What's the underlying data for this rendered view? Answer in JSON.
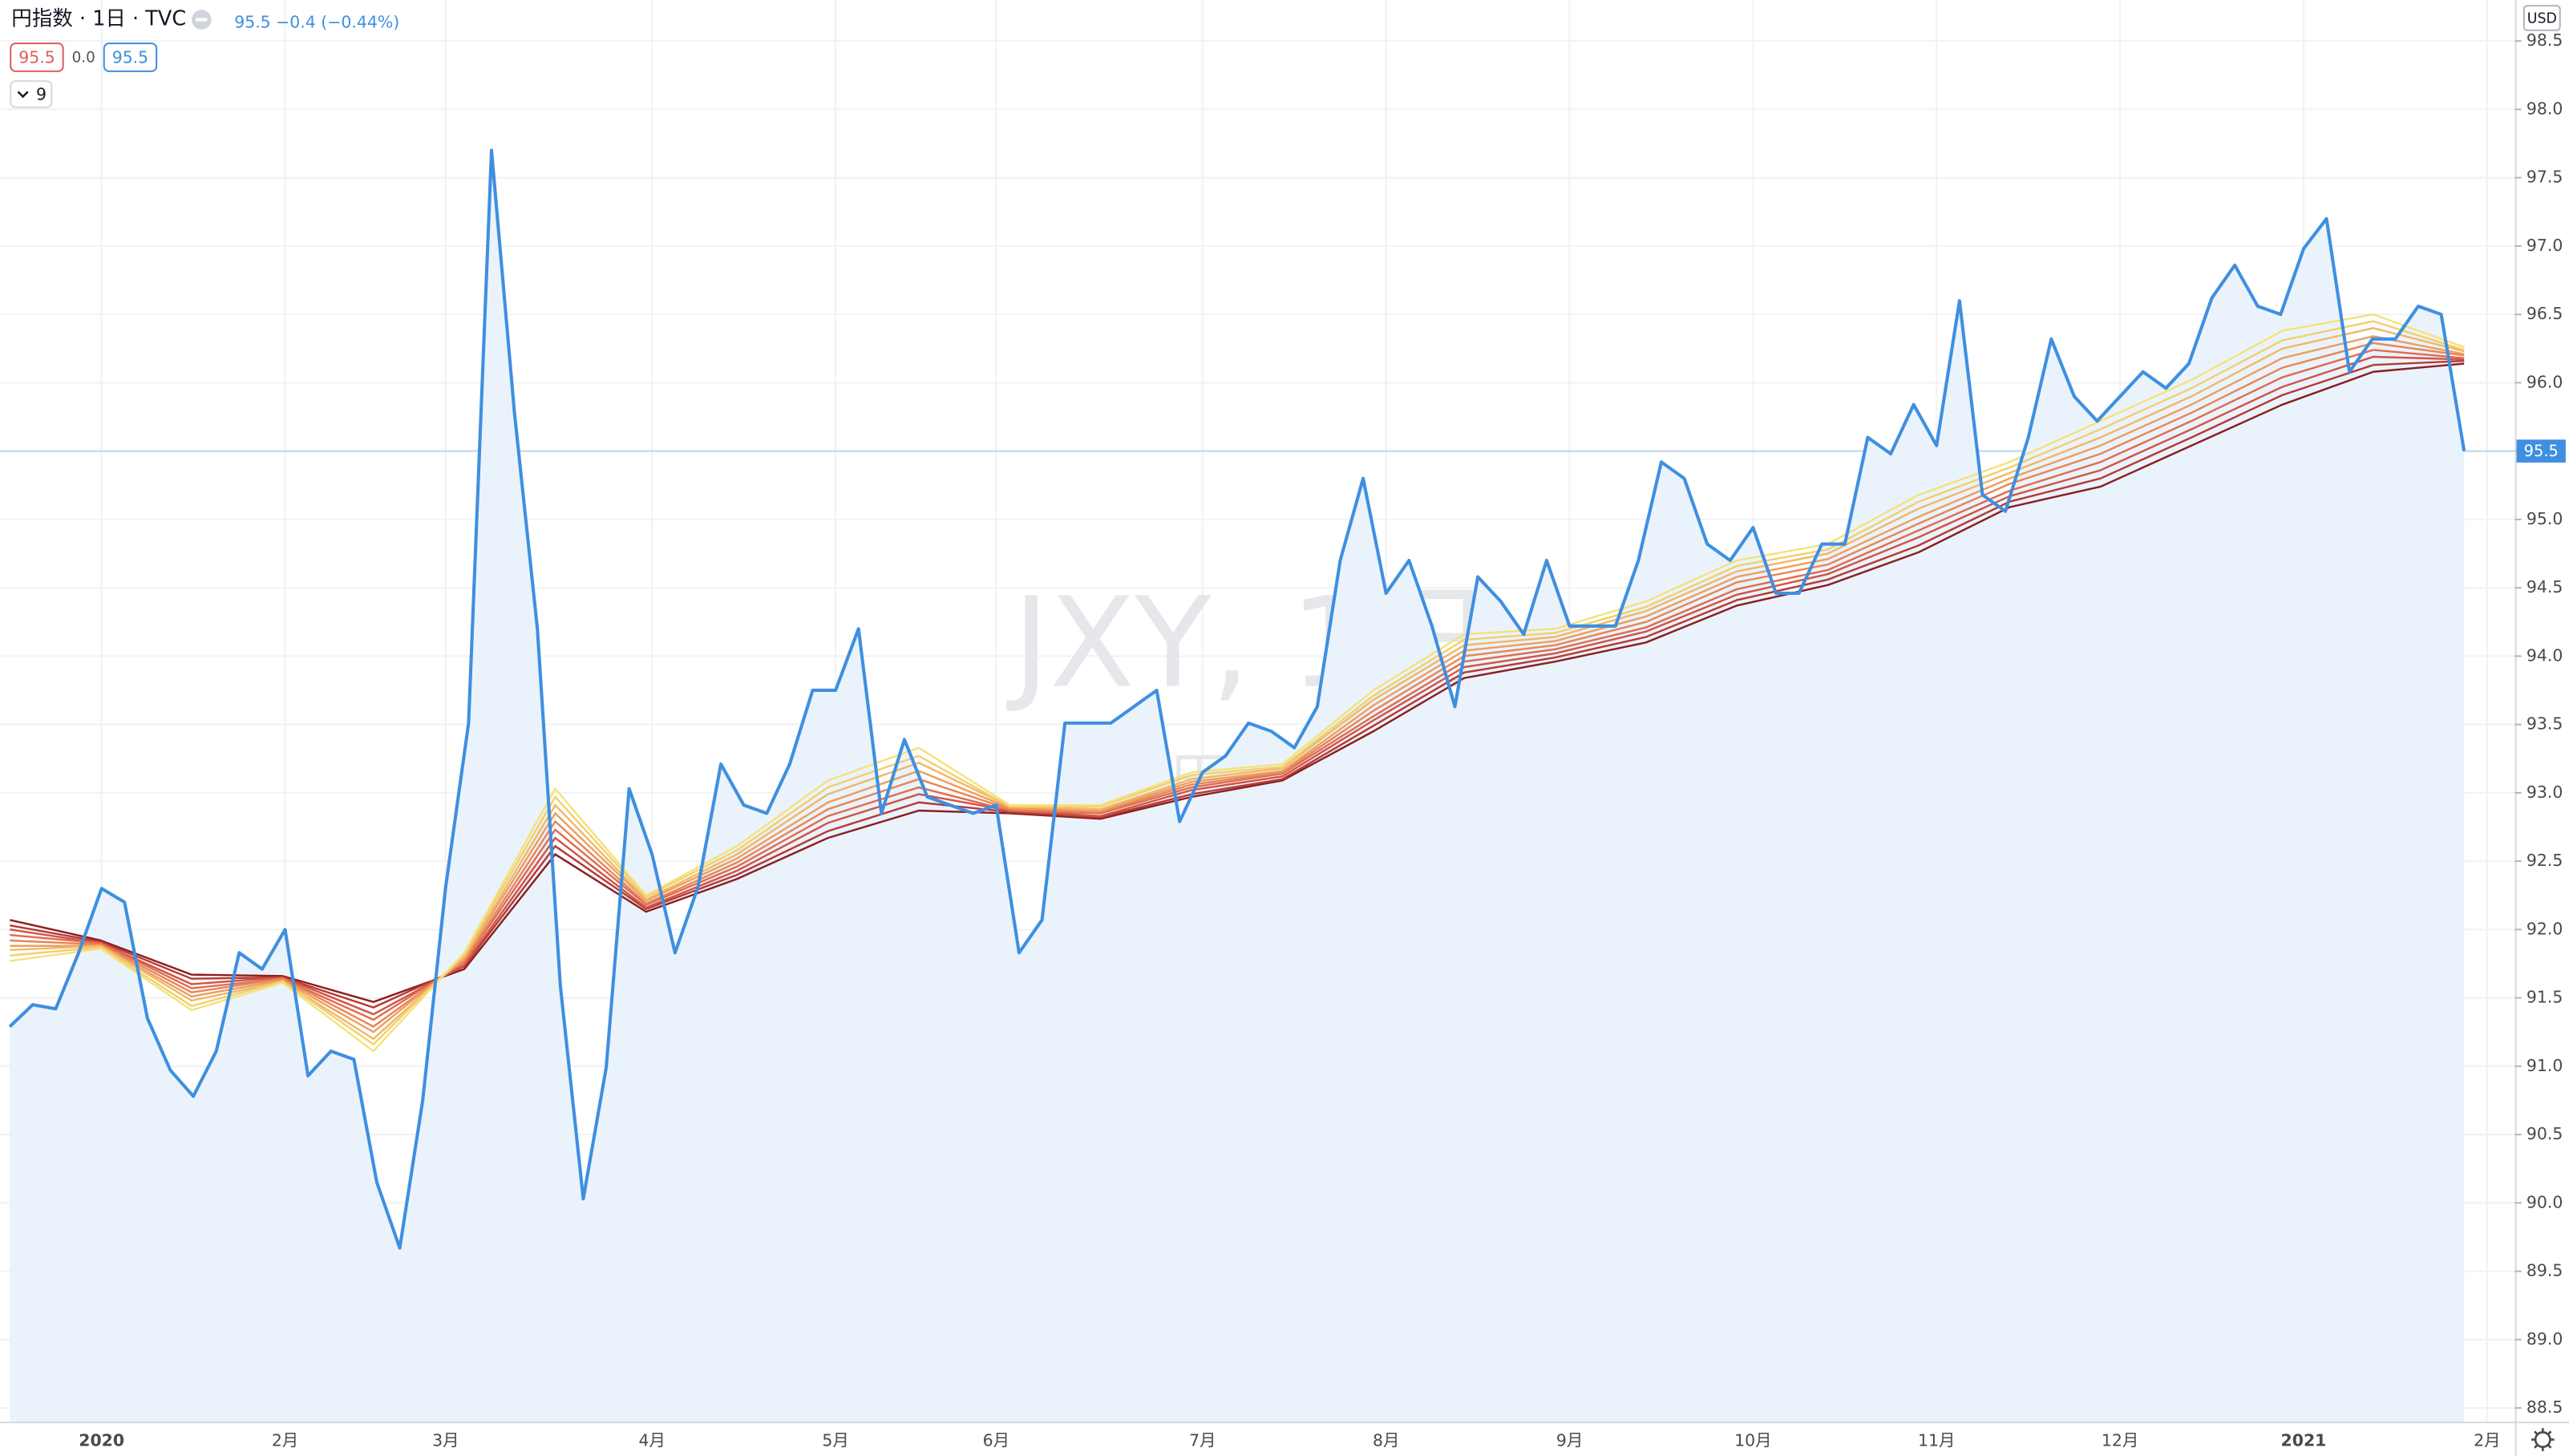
{
  "header": {
    "title": "円指数 · 1日 · TVC",
    "quote": "95.5 −0.4 (−0.44%)",
    "badge_low": "95.5",
    "badge_mid": "0.0",
    "badge_high": "95.5",
    "indicator_count": "9",
    "currency": "USD",
    "price_label": "95.5"
  },
  "watermark": {
    "symbol": "JXY, 1日",
    "name": "円指数"
  },
  "chart_data": [
    {
      "type": "area",
      "color": "#3f8fe0",
      "fill_color": "#eaf3fc",
      "grid": true,
      "ylim": [
        88.4,
        98.8
      ],
      "yticks": [
        88.5,
        {
          "value": 89,
          "label": "89.0"
        },
        89.5,
        {
          "value": 90,
          "label": "90.0"
        },
        90.5,
        {
          "value": 91,
          "label": "91.0"
        },
        91.5,
        {
          "value": 92,
          "label": "92.0"
        },
        92.5,
        {
          "value": 93,
          "label": "93.0"
        },
        93.5,
        {
          "value": 94,
          "label": "94.0"
        },
        94.5,
        {
          "value": 95,
          "label": "95.0"
        },
        95.5,
        {
          "value": 96,
          "label": "96.0"
        },
        96.5,
        {
          "value": 97,
          "label": "97.0"
        },
        97.5,
        {
          "value": 98,
          "label": "98.0"
        },
        98.5
      ],
      "categories": [
        null,
        null,
        null,
        null,
        "2020",
        null,
        null,
        null,
        null,
        null,
        null,
        null,
        "2月",
        null,
        null,
        null,
        null,
        null,
        null,
        "3月",
        null,
        null,
        null,
        null,
        null,
        null,
        null,
        null,
        "4月",
        null,
        null,
        null,
        null,
        null,
        null,
        null,
        "5月",
        null,
        null,
        null,
        null,
        null,
        null,
        "6月",
        null,
        null,
        null,
        null,
        null,
        null,
        null,
        null,
        "7月",
        null,
        null,
        null,
        null,
        null,
        null,
        null,
        "8月",
        null,
        null,
        null,
        null,
        null,
        null,
        null,
        "9月",
        null,
        null,
        null,
        null,
        null,
        null,
        null,
        "10月",
        null,
        null,
        null,
        null,
        null,
        null,
        null,
        "11月",
        null,
        null,
        null,
        null,
        null,
        null,
        null,
        "12月",
        null,
        null,
        null,
        null,
        null,
        null,
        null,
        "2021",
        null,
        null,
        null,
        null,
        null,
        null,
        null,
        "2月"
      ],
      "values": [
        91.29,
        91.45,
        91.42,
        91.83,
        92.3,
        92.2,
        91.35,
        90.97,
        90.78,
        91.11,
        91.83,
        91.71,
        92.0,
        90.93,
        91.11,
        91.05,
        90.15,
        89.67,
        90.75,
        92.31,
        93.51,
        97.7,
        95.78,
        94.2,
        91.59,
        90.03,
        90.99,
        93.03,
        92.55,
        91.83,
        92.31,
        93.21,
        92.91,
        92.85,
        93.21,
        93.75,
        93.75,
        94.2,
        92.85,
        93.39,
        92.97,
        92.91,
        92.85,
        92.91,
        91.83,
        92.07,
        93.51,
        93.51,
        93.51,
        93.63,
        93.75,
        92.79,
        93.15,
        93.27,
        93.51,
        93.45,
        93.33,
        93.63,
        94.7,
        95.3,
        94.46,
        94.7,
        94.22,
        93.63,
        94.58,
        94.4,
        94.16,
        94.7,
        94.22,
        94.22,
        94.22,
        94.7,
        95.42,
        95.3,
        94.82,
        94.7,
        94.94,
        94.46,
        94.46,
        94.82,
        94.82,
        95.6,
        95.48,
        95.84,
        95.54,
        96.6,
        95.18,
        95.06,
        95.6,
        96.32,
        95.9,
        95.72,
        95.9,
        96.08,
        95.96,
        96.14,
        96.62,
        96.86,
        96.56,
        96.5,
        96.98,
        97.2,
        96.08,
        96.32,
        96.32,
        96.56,
        96.5,
        95.5,
        null
      ]
    },
    {
      "type": "line",
      "categories": [
        null,
        null,
        null,
        null,
        null,
        null,
        null,
        null,
        null,
        null,
        null,
        null,
        null,
        null,
        null,
        null,
        null,
        null,
        null,
        null,
        null,
        null,
        null,
        null,
        null,
        null,
        null,
        null
      ],
      "series": [
        {
          "color": "#f5e27a",
          "values": [
            91.77,
            91.86,
            91.41,
            91.61,
            91.11,
            91.83,
            93.03,
            92.25,
            92.61,
            93.09,
            93.33,
            92.91,
            92.91,
            93.15,
            93.21,
            93.75,
            94.16,
            94.2,
            94.4,
            94.7,
            94.82,
            95.18,
            95.42,
            95.72,
            96.02,
            96.38,
            96.5,
            96.26
          ]
        },
        {
          "color": "#f3cf6e",
          "values": [
            91.81,
            91.87,
            91.44,
            91.62,
            91.16,
            91.82,
            92.97,
            92.24,
            92.58,
            93.04,
            93.27,
            92.9,
            92.9,
            93.13,
            93.19,
            93.71,
            94.12,
            94.17,
            94.36,
            94.66,
            94.78,
            95.13,
            95.38,
            95.66,
            95.96,
            96.31,
            96.45,
            96.24
          ]
        },
        {
          "color": "#f1b866",
          "values": [
            91.85,
            91.88,
            91.48,
            91.62,
            91.2,
            91.8,
            92.91,
            92.22,
            92.55,
            92.99,
            93.22,
            92.9,
            92.88,
            93.1,
            93.18,
            93.68,
            94.08,
            94.14,
            94.33,
            94.62,
            94.75,
            95.08,
            95.34,
            95.6,
            95.9,
            96.25,
            96.4,
            96.23
          ]
        },
        {
          "color": "#ee9f5e",
          "values": [
            91.88,
            91.88,
            91.51,
            91.63,
            91.25,
            91.79,
            92.85,
            92.21,
            92.52,
            92.93,
            93.16,
            92.89,
            92.87,
            93.08,
            93.16,
            93.64,
            94.04,
            94.11,
            94.29,
            94.58,
            94.71,
            95.02,
            95.3,
            95.54,
            95.84,
            96.18,
            96.34,
            96.21
          ]
        },
        {
          "color": "#e98657",
          "values": [
            91.92,
            91.89,
            91.54,
            91.64,
            91.29,
            91.77,
            92.79,
            92.19,
            92.49,
            92.88,
            93.1,
            92.88,
            92.86,
            93.06,
            93.15,
            93.6,
            94.0,
            94.08,
            94.25,
            94.54,
            94.67,
            94.97,
            95.26,
            95.48,
            95.78,
            96.11,
            96.29,
            96.2
          ]
        },
        {
          "color": "#e06d4f",
          "values": [
            91.96,
            91.9,
            91.57,
            91.64,
            91.34,
            91.76,
            92.73,
            92.18,
            92.46,
            92.83,
            93.04,
            92.87,
            92.85,
            93.04,
            93.14,
            93.56,
            93.96,
            94.05,
            94.21,
            94.49,
            94.63,
            94.92,
            95.21,
            95.42,
            95.72,
            96.04,
            96.24,
            96.18
          ]
        },
        {
          "color": "#d25445",
          "values": [
            92.0,
            91.9,
            91.6,
            91.65,
            91.38,
            91.74,
            92.67,
            92.16,
            92.43,
            92.78,
            92.99,
            92.87,
            92.83,
            93.02,
            93.12,
            93.53,
            93.92,
            94.02,
            94.18,
            94.45,
            94.6,
            94.87,
            95.17,
            95.36,
            95.66,
            95.97,
            96.19,
            96.17
          ]
        },
        {
          "color": "#b83a34",
          "values": [
            92.03,
            91.91,
            91.64,
            91.65,
            91.43,
            91.73,
            92.61,
            92.15,
            92.4,
            92.72,
            92.93,
            92.86,
            92.82,
            92.99,
            93.1,
            93.49,
            93.88,
            93.99,
            94.14,
            94.41,
            94.56,
            94.81,
            95.13,
            95.3,
            95.6,
            95.91,
            96.13,
            96.16
          ]
        },
        {
          "color": "#8c1f1f",
          "values": [
            92.07,
            91.92,
            91.67,
            91.66,
            91.47,
            91.71,
            92.55,
            92.13,
            92.37,
            92.67,
            92.87,
            92.85,
            92.81,
            92.97,
            93.09,
            93.45,
            93.84,
            93.96,
            94.1,
            94.37,
            94.52,
            94.76,
            95.09,
            95.24,
            95.54,
            95.84,
            96.08,
            96.14
          ]
        }
      ]
    }
  ]
}
